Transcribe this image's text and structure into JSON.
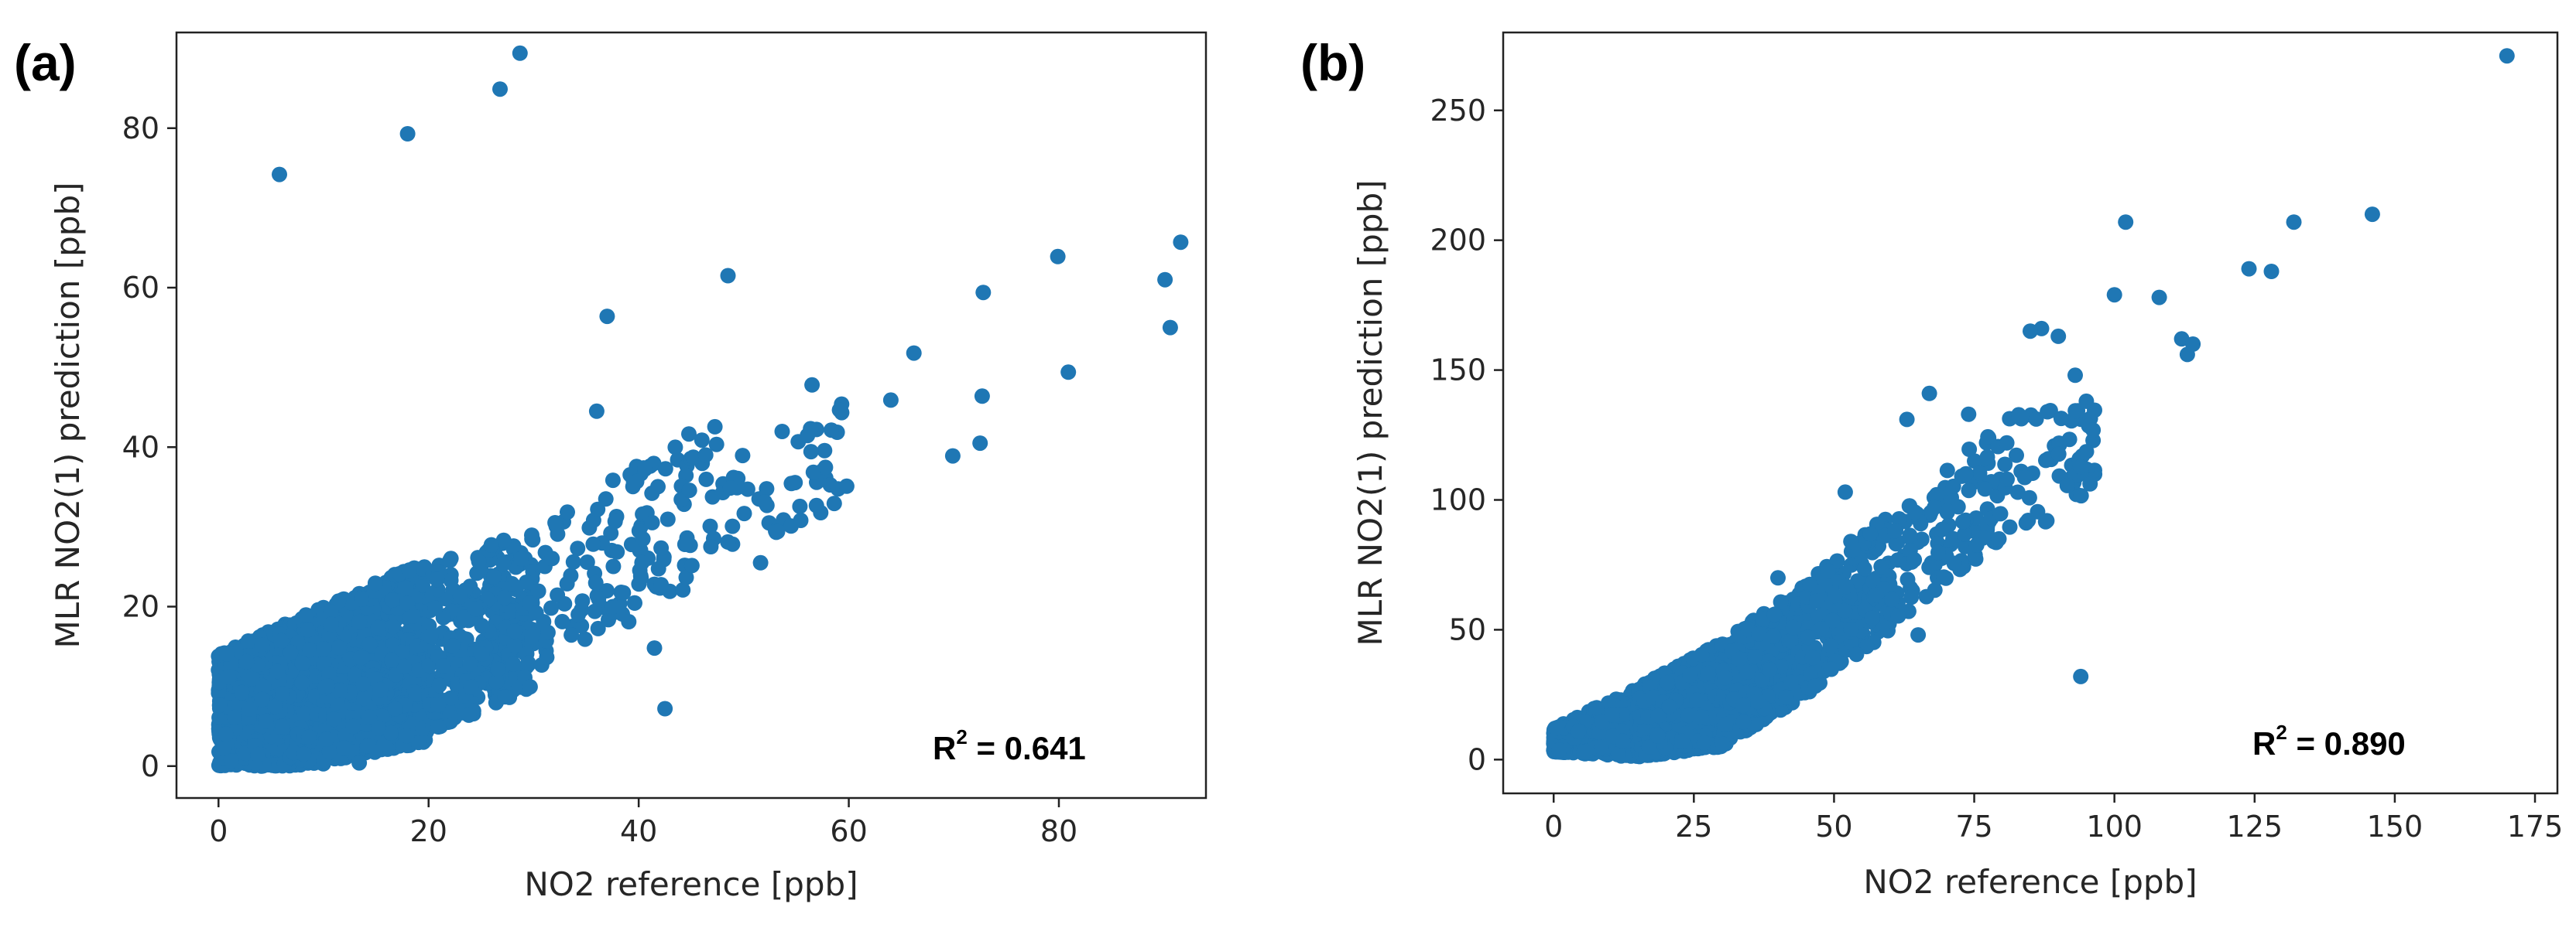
{
  "chart_data": [
    {
      "type": "scatter",
      "panel_label": "(a)",
      "xlabel": "NO2 reference [ppb]",
      "ylabel": "MLR NO2(1) prediction [ppb]",
      "xlim": [
        -4,
        94
      ],
      "ylim": [
        -4,
        92
      ],
      "xticks": [
        0,
        20,
        40,
        60,
        80
      ],
      "yticks": [
        0,
        20,
        40,
        60,
        80
      ],
      "annotation": "R² = 0.641",
      "r2_prefix": "R",
      "r2_exp": "2",
      "r2_value": " = 0.641",
      "marker_color": "#1f77b4",
      "highlight_points": [
        {
          "x": 5.8,
          "y": 74.2
        },
        {
          "x": 18.0,
          "y": 79.3
        },
        {
          "x": 26.8,
          "y": 84.9
        },
        {
          "x": 28.7,
          "y": 89.4
        },
        {
          "x": 48.5,
          "y": 61.5
        },
        {
          "x": 37.0,
          "y": 56.4
        },
        {
          "x": 79.9,
          "y": 63.9
        },
        {
          "x": 72.8,
          "y": 59.4
        },
        {
          "x": 91.6,
          "y": 65.7
        },
        {
          "x": 90.1,
          "y": 61.0
        },
        {
          "x": 90.6,
          "y": 55.0
        },
        {
          "x": 66.2,
          "y": 51.8
        },
        {
          "x": 64.0,
          "y": 45.9
        },
        {
          "x": 72.7,
          "y": 46.4
        },
        {
          "x": 80.9,
          "y": 49.4
        },
        {
          "x": 72.5,
          "y": 40.5
        },
        {
          "x": 69.9,
          "y": 38.9
        },
        {
          "x": 59.8,
          "y": 35.1
        },
        {
          "x": 56.5,
          "y": 47.8
        },
        {
          "x": 42.5,
          "y": 7.2
        },
        {
          "x": 51.6,
          "y": 25.5
        },
        {
          "x": 36.0,
          "y": 44.5
        },
        {
          "x": 13.4,
          "y": 0.4
        },
        {
          "x": 41.5,
          "y": 14.8
        }
      ],
      "cloud_segments": [
        {
          "x0": 0,
          "x1": 10,
          "lo0": 0,
          "lo1": 0,
          "hi0": 14,
          "hi1": 20,
          "n": 1500
        },
        {
          "x0": 10,
          "x1": 20,
          "lo0": 0.5,
          "lo1": 3,
          "hi0": 20,
          "hi1": 26,
          "n": 700
        },
        {
          "x0": 20,
          "x1": 30,
          "lo0": 4,
          "lo1": 10,
          "hi0": 25,
          "hi1": 30,
          "n": 300
        },
        {
          "x0": 30,
          "x1": 45,
          "lo0": 12,
          "lo1": 22,
          "hi0": 30,
          "hi1": 42,
          "n": 120
        },
        {
          "x0": 45,
          "x1": 60,
          "lo0": 25,
          "lo1": 33,
          "hi0": 42,
          "hi1": 46,
          "n": 60
        }
      ]
    },
    {
      "type": "scatter",
      "panel_label": "(b)",
      "xlabel": "NO2 reference [ppb]",
      "ylabel": "MLR NO2(1) prediction [ppb]",
      "xlim": [
        -9,
        179
      ],
      "ylim": [
        -13,
        280
      ],
      "xticks": [
        0,
        25,
        50,
        75,
        100,
        125,
        150,
        175
      ],
      "yticks": [
        0,
        50,
        100,
        150,
        200,
        250
      ],
      "annotation": "R² = 0.890",
      "r2_prefix": "R",
      "r2_exp": "2",
      "r2_value": " = 0.890",
      "marker_color": "#1f77b4",
      "highlight_points": [
        {
          "x": 170,
          "y": 271
        },
        {
          "x": 146,
          "y": 210
        },
        {
          "x": 132,
          "y": 207
        },
        {
          "x": 102,
          "y": 207
        },
        {
          "x": 124,
          "y": 189
        },
        {
          "x": 128,
          "y": 188
        },
        {
          "x": 100,
          "y": 179
        },
        {
          "x": 108,
          "y": 178
        },
        {
          "x": 112,
          "y": 162
        },
        {
          "x": 114,
          "y": 160
        },
        {
          "x": 113,
          "y": 156
        },
        {
          "x": 90,
          "y": 163
        },
        {
          "x": 87,
          "y": 166
        },
        {
          "x": 85,
          "y": 165
        },
        {
          "x": 93,
          "y": 148
        },
        {
          "x": 94,
          "y": 32
        },
        {
          "x": 65,
          "y": 48
        },
        {
          "x": 67,
          "y": 141
        },
        {
          "x": 63,
          "y": 131
        },
        {
          "x": 74,
          "y": 133
        },
        {
          "x": 95,
          "y": 138
        },
        {
          "x": 52,
          "y": 103
        },
        {
          "x": 53,
          "y": 84
        },
        {
          "x": 40,
          "y": 70
        }
      ],
      "cloud_segments": [
        {
          "x0": 0,
          "x1": 15,
          "lo0": 3,
          "lo1": 1,
          "hi0": 12,
          "hi1": 28,
          "n": 500
        },
        {
          "x0": 15,
          "x1": 30,
          "lo0": 1,
          "lo1": 5,
          "hi0": 28,
          "hi1": 45,
          "n": 900
        },
        {
          "x0": 30,
          "x1": 45,
          "lo0": 5,
          "lo1": 25,
          "hi0": 45,
          "hi1": 68,
          "n": 450
        },
        {
          "x0": 45,
          "x1": 60,
          "lo0": 25,
          "lo1": 50,
          "hi0": 68,
          "hi1": 95,
          "n": 200
        },
        {
          "x0": 60,
          "x1": 80,
          "lo0": 50,
          "lo1": 85,
          "hi0": 95,
          "hi1": 130,
          "n": 120
        },
        {
          "x0": 80,
          "x1": 97,
          "lo0": 80,
          "lo1": 105,
          "hi0": 135,
          "hi1": 135,
          "n": 60
        }
      ]
    }
  ]
}
